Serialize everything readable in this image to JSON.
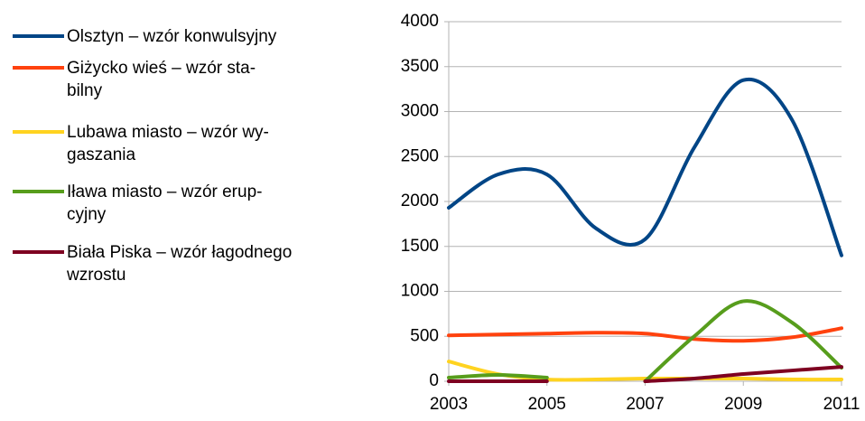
{
  "chart_data": {
    "type": "line",
    "x": [
      2003,
      2004,
      2005,
      2006,
      2007,
      2008,
      2009,
      2010,
      2011
    ],
    "series": [
      {
        "name": "Olsztyn – wzór  konwulsyjny",
        "color": "#004586",
        "values": [
          1930,
          2300,
          2300,
          1700,
          1580,
          2600,
          3350,
          2900,
          1400
        ]
      },
      {
        "name": " Giżycko wieś – wzór sta-\nbilny",
        "color": "#ff420e",
        "values": [
          510,
          520,
          530,
          540,
          530,
          470,
          450,
          490,
          590
        ]
      },
      {
        "name": "Lubawa miasto – wzór wy-\ngaszania",
        "color": "#ffd320",
        "values": [
          220,
          80,
          20,
          20,
          30,
          30,
          30,
          20,
          20
        ]
      },
      {
        "name": "Iława miasto – wzór erup-\ncyjny",
        "color": "#579d1c",
        "values": [
          40,
          70,
          40,
          null,
          0,
          500,
          890,
          650,
          150
        ]
      },
      {
        "name": "Biała Piska – wzór łagodnego\nwzrostu",
        "color": "#7e0021",
        "values": [
          0,
          0,
          0,
          null,
          0,
          30,
          80,
          120,
          160
        ]
      }
    ],
    "xlim": [
      2003,
      2011
    ],
    "xticks": [
      2003,
      2005,
      2007,
      2009,
      2011
    ],
    "ylim": [
      0,
      4000
    ],
    "yticks": [
      0,
      500,
      1000,
      1500,
      2000,
      2500,
      3000,
      3500,
      4000
    ],
    "grid": true,
    "legend": "left"
  }
}
